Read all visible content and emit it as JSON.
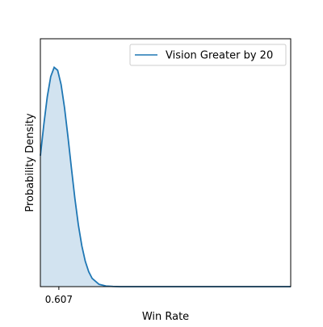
{
  "chart_data": {
    "type": "area",
    "title": "",
    "xlabel": "Win Rate",
    "ylabel": "Probability Density",
    "xticks": [
      {
        "value": 0.607,
        "label": "0.607"
      }
    ],
    "yticks": [],
    "xlim": [
      0.5,
      1.95
    ],
    "ylim": [
      0,
      1.18
    ],
    "grid": false,
    "legend": {
      "placement": "top-right",
      "entries": [
        "Vision Greater by 20"
      ]
    },
    "series": [
      {
        "name": "Vision Greater by 20",
        "line_color": "#1f77b4",
        "fill_color": "#d2e3f0",
        "x": [
          0.5,
          0.52,
          0.54,
          0.56,
          0.58,
          0.6,
          0.62,
          0.64,
          0.66,
          0.68,
          0.7,
          0.72,
          0.74,
          0.76,
          0.78,
          0.8,
          0.84,
          0.88,
          0.92,
          0.96,
          1.0,
          1.1,
          1.2,
          1.4,
          1.6,
          1.8,
          1.95
        ],
        "y": [
          0.623,
          0.772,
          0.904,
          1.0,
          1.044,
          1.03,
          0.962,
          0.851,
          0.712,
          0.563,
          0.419,
          0.294,
          0.195,
          0.121,
          0.071,
          0.039,
          0.011,
          0.003,
          0.001,
          0.0,
          0.0,
          0.0,
          0.0,
          0.0,
          0.0,
          0.0,
          0.0
        ]
      }
    ]
  }
}
